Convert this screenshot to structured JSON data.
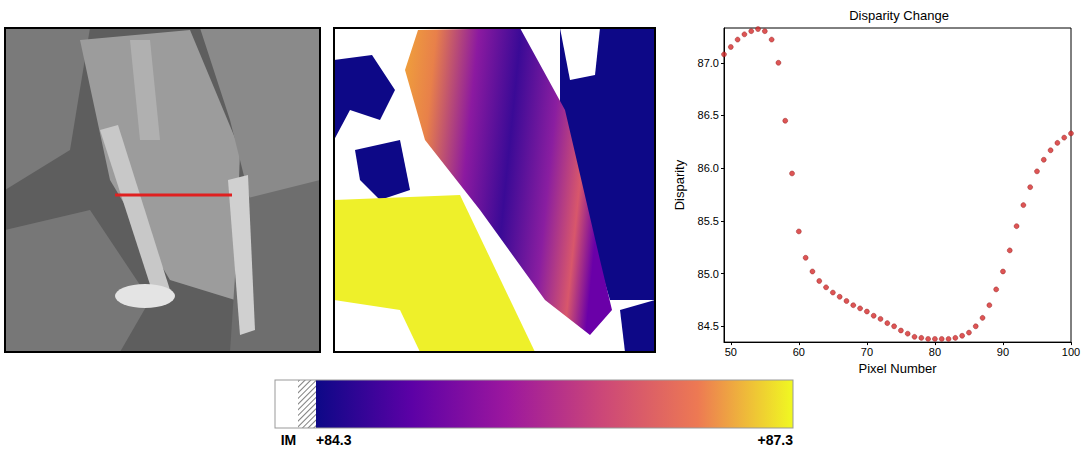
{
  "chart_data": {
    "type": "scatter",
    "title": "Disparity Change",
    "x_label": "Pixel Number",
    "y_label": "Disparity",
    "x": [
      49,
      50,
      51,
      52,
      53,
      54,
      55,
      56,
      57,
      58,
      59,
      60,
      61,
      62,
      63,
      64,
      65,
      66,
      67,
      68,
      69,
      70,
      71,
      72,
      73,
      74,
      75,
      76,
      77,
      78,
      79,
      80,
      81,
      82,
      83,
      84,
      85,
      86,
      87,
      88,
      89,
      90,
      91,
      92,
      93,
      94,
      95,
      96,
      97,
      98,
      99,
      100
    ],
    "values": [
      87.08,
      87.15,
      87.22,
      87.27,
      87.3,
      87.32,
      87.3,
      87.22,
      87.0,
      86.45,
      85.95,
      85.4,
      85.15,
      85.02,
      84.93,
      84.87,
      84.82,
      84.78,
      84.74,
      84.7,
      84.67,
      84.64,
      84.6,
      84.57,
      84.53,
      84.5,
      84.46,
      84.43,
      84.4,
      84.39,
      84.38,
      84.38,
      84.38,
      84.38,
      84.39,
      84.41,
      84.44,
      84.5,
      84.58,
      84.7,
      84.85,
      85.02,
      85.22,
      85.45,
      85.65,
      85.82,
      85.97,
      86.08,
      86.17,
      86.24,
      86.29,
      86.33
    ],
    "color": "#d42a2a",
    "marker": "circle",
    "xlim": [
      49,
      100
    ],
    "xticks": [
      50,
      60,
      70,
      80,
      90,
      100
    ],
    "ylim": [
      84.35,
      87.33
    ],
    "yticks": [
      84.5,
      {
        "value": 85,
        "label": "85.0"
      },
      85.5,
      {
        "value": 86,
        "label": "86.0"
      },
      86.5,
      {
        "value": 87,
        "label": "87.0"
      }
    ],
    "grid": false
  },
  "colorbar": {
    "mask_label": "IM",
    "range": [
      84.3,
      87.3
    ],
    "ticks": [
      {
        "value": 84.3,
        "label": "+84.3"
      },
      {
        "value": 87.3,
        "label": "+87.3"
      }
    ]
  }
}
